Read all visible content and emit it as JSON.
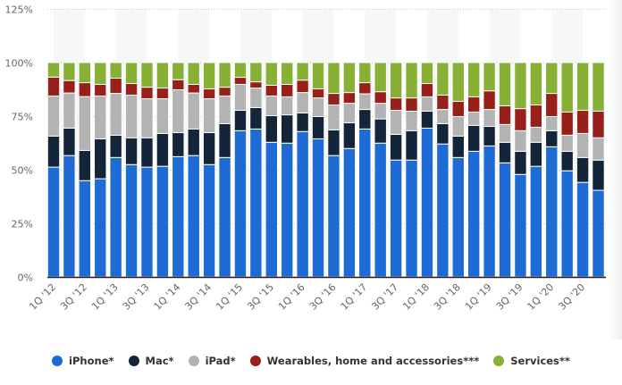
{
  "chart_data": {
    "type": "bar",
    "stacked": true,
    "title": "",
    "xlabel": "",
    "ylabel": "",
    "ylim": [
      0,
      125
    ],
    "grid": true,
    "legend_position": "bottom",
    "y_ticks": [
      "0%",
      "25%",
      "50%",
      "75%",
      "100%",
      "125%"
    ],
    "y_tick_values": [
      0,
      25,
      50,
      75,
      100,
      125
    ],
    "categories": [
      "1Q '12",
      "2Q '12",
      "3Q '12",
      "4Q '12",
      "1Q '13",
      "2Q '13",
      "3Q '13",
      "4Q '13",
      "1Q '14",
      "2Q '14",
      "3Q '14",
      "4Q '14",
      "1Q '15",
      "2Q '15",
      "3Q '15",
      "4Q '15",
      "1Q '16",
      "2Q '16",
      "3Q '16",
      "4Q '16",
      "1Q '17",
      "2Q '17",
      "3Q '17",
      "4Q '17",
      "1Q '18",
      "2Q '18",
      "3Q '18",
      "4Q '18",
      "1Q '19",
      "2Q '19",
      "3Q '19",
      "4Q '19",
      "1Q '20",
      "2Q '20",
      "3Q '20",
      "4Q '20"
    ],
    "x_tick_labels": [
      "1Q '12",
      "3Q '12",
      "1Q '13",
      "3Q '13",
      "1Q '14",
      "3Q '14",
      "1Q '15",
      "3Q '15",
      "1Q '16",
      "3Q '16",
      "1Q '17",
      "3Q '17",
      "1Q '18",
      "3Q '18",
      "1Q '19",
      "3Q '19",
      "1Q '20",
      "3Q '20"
    ],
    "series": [
      {
        "name": "iPhone*",
        "color": "#1f6bd6",
        "values": [
          51.2,
          56.6,
          44.9,
          45.8,
          55.7,
          52.4,
          51.2,
          51.6,
          56.1,
          56.6,
          52.4,
          55.7,
          68.2,
          69.0,
          62.8,
          62.4,
          67.8,
          64.4,
          56.6,
          59.9,
          69.0,
          62.4,
          54.5,
          54.5,
          69.4,
          62.0,
          55.7,
          58.6,
          61.1,
          53.2,
          47.8,
          51.6,
          60.7,
          49.5,
          44.1,
          40.4
        ]
      },
      {
        "name": "Mac*",
        "color": "#14253a",
        "values": [
          14.5,
          12.8,
          14.1,
          18.6,
          10.4,
          12.5,
          13.7,
          15.3,
          11.2,
          12.4,
          14.9,
          15.8,
          9.5,
          10.0,
          12.4,
          13.2,
          8.7,
          10.4,
          12.0,
          12.0,
          9.1,
          11.3,
          12.0,
          13.7,
          7.9,
          9.5,
          10.0,
          12.1,
          9.1,
          9.6,
          10.8,
          11.2,
          7.5,
          9.1,
          11.6,
          14.1
        ]
      },
      {
        "name": "iPad*",
        "color": "#b3b3b3",
        "values": [
          18.7,
          16.4,
          25.1,
          20.0,
          19.5,
          19.9,
          18.2,
          16.2,
          20.0,
          16.8,
          15.8,
          12.9,
          12.1,
          9.1,
          9.2,
          8.4,
          9.5,
          8.7,
          11.6,
          9.1,
          7.3,
          7.3,
          11.2,
          9.1,
          6.7,
          6.6,
          9.1,
          6.2,
          7.9,
          8.3,
          9.6,
          7.0,
          6.6,
          7.5,
          11.2,
          10.4
        ]
      },
      {
        "name": "Wearables, home and accessories***",
        "color": "#98201a",
        "values": [
          8.8,
          5.8,
          6.5,
          5.4,
          7.1,
          5.4,
          5.4,
          5.0,
          4.7,
          4.0,
          4.6,
          4.1,
          3.3,
          2.9,
          5.0,
          5.8,
          5.8,
          4.2,
          5.4,
          5.0,
          5.2,
          5.4,
          5.8,
          6.2,
          6.2,
          6.7,
          7.1,
          7.1,
          8.7,
          8.7,
          10.3,
          10.4,
          10.8,
          10.8,
          10.8,
          12.4
        ]
      },
      {
        "name": "Services**",
        "color": "#88b034",
        "values": [
          6.8,
          8.4,
          9.4,
          10.2,
          7.3,
          9.8,
          11.5,
          11.9,
          8.0,
          10.2,
          12.3,
          11.5,
          6.9,
          9.0,
          10.6,
          10.2,
          8.2,
          12.3,
          14.4,
          14.0,
          9.4,
          13.6,
          16.5,
          16.5,
          9.8,
          15.2,
          18.1,
          16.0,
          13.2,
          20.2,
          21.5,
          19.8,
          14.4,
          23.1,
          22.3,
          22.7
        ]
      }
    ]
  }
}
